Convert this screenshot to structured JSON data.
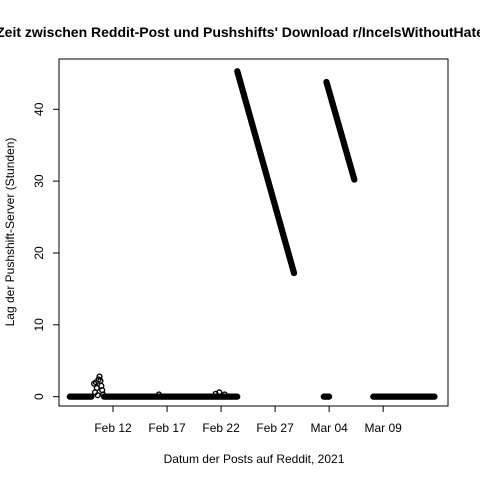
{
  "chart_data": {
    "type": "scatter",
    "title": "Zeit zwischen Reddit-Post und Pushshifts' Download r/IncelsWithoutHate",
    "xlabel": "Datum der Posts auf Reddit, 2021",
    "ylabel": "Lag der Pushshift-Server (Stunden)",
    "x_is_date": true,
    "xlim": [
      "2021-02-07",
      "2021-03-15"
    ],
    "ylim": [
      -1.3,
      47
    ],
    "x_ticks": [
      {
        "date": "2021-02-12",
        "label": "Feb 12"
      },
      {
        "date": "2021-02-17",
        "label": "Feb 17"
      },
      {
        "date": "2021-02-22",
        "label": "Feb 22"
      },
      {
        "date": "2021-02-27",
        "label": "Feb 27"
      },
      {
        "date": "2021-03-04",
        "label": "Mar 04"
      },
      {
        "date": "2021-03-09",
        "label": "Mar 09"
      }
    ],
    "y_ticks": [
      0,
      10,
      20,
      30,
      40
    ],
    "grid": false,
    "legend": "none",
    "marker": "open-circle",
    "color": "#000000",
    "series": [
      {
        "segments": [
          {
            "kind": "line",
            "from": [
              "2021-02-08",
              0
            ],
            "to": [
              "2021-02-10",
              0
            ]
          },
          {
            "kind": "points",
            "points": [
              [
                "2021-02-10 06:00",
                1.8
              ],
              [
                "2021-02-10 08:00",
                0.6
              ],
              [
                "2021-02-10 10:00",
                2.0
              ],
              [
                "2021-02-10 12:00",
                1.2
              ],
              [
                "2021-02-10 14:00",
                0.2
              ],
              [
                "2021-02-10 16:00",
                2.4
              ],
              [
                "2021-02-10 18:00",
                2.8
              ],
              [
                "2021-02-10 20:00",
                2.2
              ],
              [
                "2021-02-10 22:00",
                1.5
              ],
              [
                "2021-02-11 00:00",
                0.9
              ],
              [
                "2021-02-11 02:00",
                0.3
              ]
            ]
          },
          {
            "kind": "line",
            "from": [
              "2021-02-11 04:00",
              0
            ],
            "to": [
              "2021-02-23 12:00",
              0
            ]
          },
          {
            "kind": "points",
            "points": [
              [
                "2021-02-16 06:00",
                0.3
              ],
              [
                "2021-02-21 12:00",
                0.4
              ],
              [
                "2021-02-21 20:00",
                0.6
              ],
              [
                "2021-02-22 08:00",
                0.3
              ]
            ]
          },
          {
            "kind": "line",
            "from": [
              "2021-02-23 12:00",
              45.3
            ],
            "to": [
              "2021-02-28 18:00",
              17.2
            ]
          },
          {
            "kind": "line",
            "from": [
              "2021-03-03 12:00",
              0
            ],
            "to": [
              "2021-03-04 00:00",
              0
            ]
          },
          {
            "kind": "line",
            "from": [
              "2021-03-03 18:00",
              43.8
            ],
            "to": [
              "2021-03-06 08:00",
              30.2
            ]
          },
          {
            "kind": "line",
            "from": [
              "2021-03-08 02:00",
              0
            ],
            "to": [
              "2021-03-13 18:00",
              0
            ]
          }
        ]
      }
    ]
  }
}
